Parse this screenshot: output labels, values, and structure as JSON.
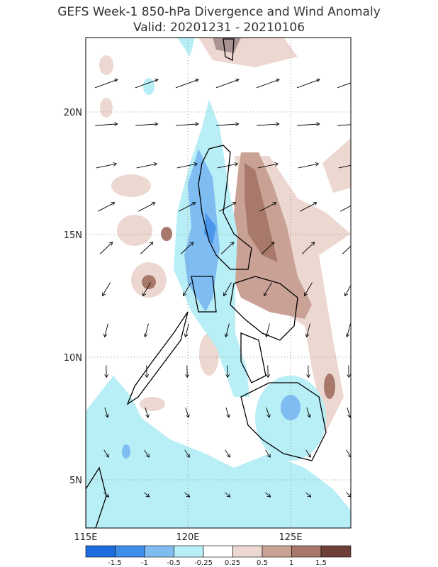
{
  "header": {
    "title": "GEFS Week-1 850-hPa Divergence and Wind Anomaly",
    "subtitle": "Valid: 20201231 - 20210106"
  },
  "map": {
    "lat_labels": [
      "20N",
      "15N",
      "10N",
      "5N"
    ],
    "lon_labels": [
      "115E",
      "120E",
      "125E"
    ]
  },
  "colorbar": {
    "labels": [
      "-1.5",
      "-1",
      "-0.5",
      "-0.25",
      "0.25",
      "0.5",
      "1",
      "1.5"
    ]
  }
}
